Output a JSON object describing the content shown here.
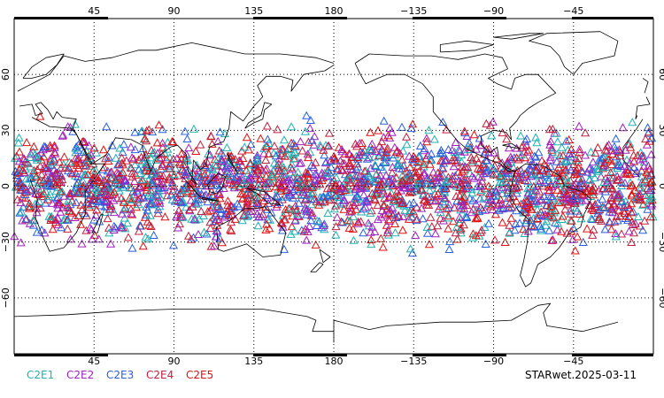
{
  "map": {
    "projection": "cylindrical equidistant",
    "central_longitude": 180,
    "lon_range": [
      0,
      360
    ],
    "lat_range": [
      -90,
      90
    ],
    "lon_tick_labels": [
      "45",
      "90",
      "135",
      "180",
      "−135",
      "−90",
      "−45"
    ],
    "lat_tick_labels": [
      "60",
      "30",
      "0",
      "−30",
      "−60"
    ],
    "grid": "dotted",
    "coastlines": true
  },
  "observations": {
    "marker": "open-triangle",
    "latitude_band": [
      -40,
      40
    ],
    "instruments": [
      {
        "name": "C2E1",
        "color": "#20b2b2"
      },
      {
        "name": "C2E2",
        "color": "#a020c0"
      },
      {
        "name": "C2E3",
        "color": "#2860e0"
      },
      {
        "name": "C2E4",
        "color": "#c02040"
      },
      {
        "name": "C2E5",
        "color": "#e01010"
      }
    ]
  },
  "footer": {
    "stamp": "STARwet.2025-03-11"
  }
}
